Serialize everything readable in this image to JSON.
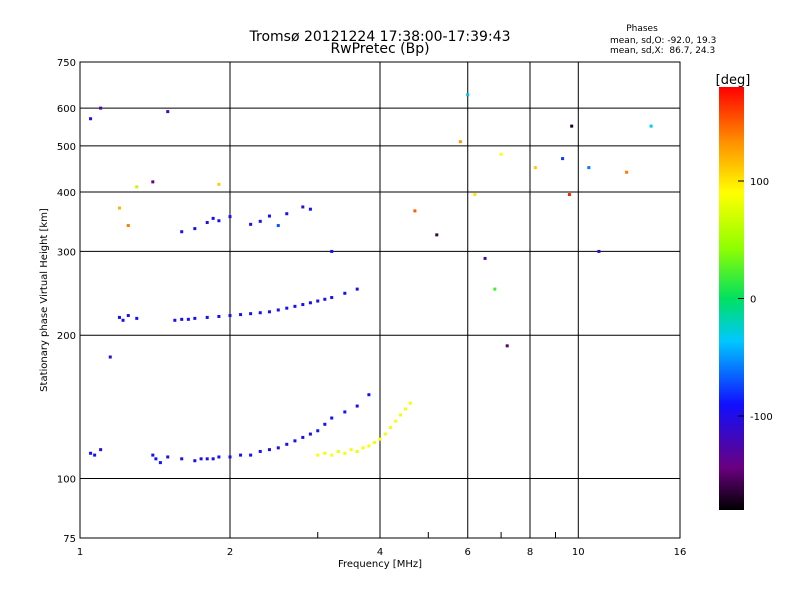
{
  "chart_data": {
    "type": "scatter",
    "title": "Tromsø 20121224 17:38:00-17:39:43",
    "subtitle": "RwPretec (Bp)",
    "xlabel": "Frequency [MHz]",
    "ylabel": "Stationary phase Virtual Height [km]",
    "x_scale": "log",
    "y_scale": "log",
    "xlim": [
      1,
      16
    ],
    "ylim": [
      75,
      750
    ],
    "x_ticks": [
      1,
      2,
      4,
      6,
      8,
      10,
      16
    ],
    "x_tick_labels": [
      "1",
      "2",
      "4",
      "6",
      "8",
      "10",
      "16"
    ],
    "x_minor_ticks": [
      3,
      5,
      7,
      9
    ],
    "y_ticks": [
      75,
      100,
      200,
      300,
      400,
      500,
      600,
      750
    ],
    "y_tick_labels": [
      "75",
      "100",
      "200",
      "300",
      "400",
      "500",
      "600",
      "750"
    ],
    "grid": true,
    "stats": {
      "heading": "Phases",
      "line_o": "mean, sd,O: -92.0, 19.3",
      "line_x": "mean, sd,X:  86.7, 24.3"
    },
    "colorbar": {
      "label": "[deg]",
      "range": [
        -180,
        180
      ],
      "ticks": [
        100,
        0,
        -100
      ],
      "tick_labels": [
        "100",
        "0",
        "-100"
      ]
    },
    "series": [
      {
        "x": [
          1.05,
          1.07,
          1.1,
          1.4,
          1.42,
          1.45,
          1.5,
          1.6,
          1.7,
          1.75,
          1.8,
          1.85,
          1.9,
          2.0,
          2.1,
          2.2,
          2.3,
          2.4,
          2.5,
          2.6,
          2.7,
          2.8,
          2.9,
          3.0,
          3.1,
          3.2,
          3.4,
          3.6,
          3.8
        ],
        "y": [
          113,
          112,
          115,
          112,
          110,
          108,
          111,
          110,
          109,
          110,
          110,
          110,
          111,
          111,
          112,
          112,
          114,
          115,
          116,
          118,
          120,
          122,
          124,
          126,
          130,
          134,
          138,
          142,
          150
        ],
        "phase": [
          -95,
          -90,
          -100,
          -92,
          -95,
          -88,
          -100,
          -95,
          -98,
          -92,
          -96,
          -90,
          -94,
          -93,
          -97,
          -91,
          -89,
          -95,
          -93,
          -96,
          -90,
          -94,
          -92,
          -88,
          -95,
          -91,
          -93,
          -96,
          -90
        ]
      },
      {
        "x": [
          1.2,
          1.22,
          1.25,
          1.3,
          1.55,
          1.6,
          1.65,
          1.7,
          1.8,
          1.9,
          2.0,
          2.1,
          2.2,
          2.3,
          2.4,
          2.5,
          2.6,
          2.7,
          2.8,
          2.9,
          3.0,
          3.1,
          3.2,
          3.4,
          3.6
        ],
        "y": [
          218,
          215,
          220,
          217,
          215,
          216,
          216,
          217,
          218,
          219,
          220,
          221,
          222,
          223,
          224,
          226,
          228,
          230,
          232,
          234,
          236,
          238,
          240,
          245,
          250
        ],
        "phase": [
          -95,
          -92,
          -98,
          -90,
          -93,
          -96,
          -91,
          -94,
          -95,
          -92,
          -97,
          -90,
          -93,
          -95,
          -91,
          -94,
          -92,
          -96,
          -90,
          -93,
          -95,
          -91,
          -94,
          -92,
          -96
        ]
      },
      {
        "x": [
          1.6,
          1.7,
          1.8,
          1.85,
          1.9,
          2.0,
          2.2,
          2.3,
          2.4,
          2.6,
          2.8,
          2.9
        ],
        "y": [
          330,
          335,
          345,
          352,
          348,
          355,
          342,
          347,
          356,
          360,
          372,
          368
        ],
        "phase": [
          -95,
          -92,
          -98,
          -90,
          -93,
          -96,
          -91,
          -94,
          -95,
          -92,
          -97,
          -90
        ]
      },
      {
        "x": [
          3.0,
          3.1,
          3.2,
          3.3,
          3.4,
          3.5,
          3.6,
          3.7,
          3.8,
          3.9,
          4.0,
          4.1,
          4.2,
          4.3,
          4.4,
          4.5,
          4.6
        ],
        "y": [
          112,
          113,
          112,
          114,
          113,
          115,
          114,
          116,
          117,
          119,
          121,
          124,
          128,
          132,
          136,
          140,
          144
        ],
        "phase": [
          88,
          85,
          90,
          82,
          87,
          92,
          80,
          86,
          89,
          84,
          91,
          83,
          87,
          90,
          85,
          88,
          86
        ]
      },
      {
        "x": [
          1.05,
          1.1,
          1.15,
          1.2,
          1.25,
          1.3,
          1.4,
          1.5,
          1.9,
          2.5,
          3.2,
          4.7,
          5.2,
          5.8,
          6.0,
          6.2,
          6.5,
          6.8,
          7.0,
          7.2,
          8.2,
          9.3,
          9.6,
          9.7,
          10.5,
          11.0,
          12.5,
          14.0
        ],
        "y": [
          570,
          600,
          180,
          370,
          340,
          410,
          420,
          590,
          415,
          340,
          300,
          365,
          325,
          510,
          640,
          395,
          290,
          250,
          480,
          190,
          450,
          470,
          395,
          550,
          450,
          300,
          440,
          550
        ],
        "phase": [
          -100,
          -130,
          -110,
          120,
          140,
          60,
          -140,
          -120,
          110,
          -70,
          -90,
          150,
          -160,
          130,
          -40,
          100,
          -120,
          20,
          90,
          -150,
          110,
          -80,
          170,
          -170,
          -60,
          -110,
          140,
          -30
        ]
      }
    ]
  }
}
